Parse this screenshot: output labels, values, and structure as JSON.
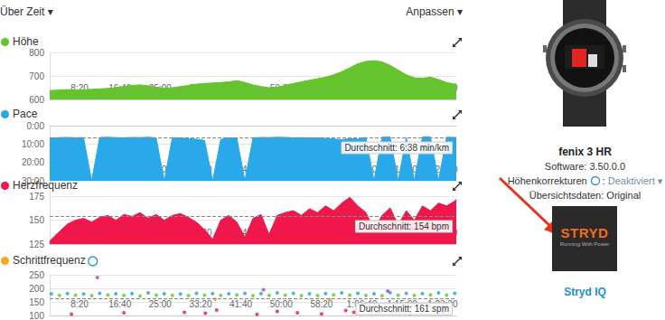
{
  "header": {
    "left": "Über Zeit ▾",
    "right": "Anpassen ▾"
  },
  "chart_data": [
    {
      "type": "area",
      "title": "Höhe",
      "color": "#65c32e",
      "x": [
        130,
        150,
        250,
        350,
        450,
        550,
        650,
        750,
        850,
        950,
        1050,
        1150,
        1250,
        1350,
        1450,
        1550,
        1650,
        1750,
        1850,
        1950,
        2050,
        2150,
        2250,
        2350,
        2450,
        2550,
        2650,
        2750,
        2850,
        2950,
        3050,
        3150,
        3250,
        3350,
        3450,
        3550,
        3650,
        3750,
        3850,
        3950,
        4050,
        4150,
        4250,
        4350,
        4450,
        4550,
        4650,
        4750,
        4850,
        4950,
        5050,
        5150,
        5170
      ],
      "values": [
        638,
        638,
        640,
        642,
        640,
        641,
        643,
        645,
        647,
        650,
        655,
        660,
        662,
        658,
        652,
        648,
        650,
        655,
        660,
        665,
        668,
        670,
        672,
        675,
        680,
        672,
        662,
        655,
        650,
        652,
        660,
        668,
        675,
        682,
        688,
        695,
        705,
        718,
        735,
        752,
        762,
        765,
        760,
        745,
        725,
        705,
        692,
        690,
        695,
        685,
        672,
        665,
        668
      ],
      "xlim": [
        130,
        5170
      ],
      "xticks": [
        {
          "value": 500,
          "label": "8:20"
        },
        {
          "value": 1000,
          "label": "16:40"
        },
        {
          "value": 1500,
          "label": "25:00"
        },
        {
          "value": 2000,
          "label": "33:20"
        },
        {
          "value": 2500,
          "label": "41:40"
        },
        {
          "value": 3000,
          "label": "50:00"
        },
        {
          "value": 3500,
          "label": "58:20"
        },
        {
          "value": 4000,
          "label": "1:06:40"
        },
        {
          "value": 4500,
          "label": "1:15:00"
        },
        {
          "value": 5000,
          "label": "1:23:20"
        }
      ],
      "ylim": [
        600,
        800
      ],
      "yticks": [
        600,
        700,
        800
      ],
      "grid": true
    },
    {
      "type": "area",
      "title": "Pace",
      "color": "#2aa9ea",
      "x": [
        130,
        150,
        250,
        350,
        450,
        550,
        650,
        750,
        850,
        950,
        1050,
        1150,
        1250,
        1350,
        1450,
        1550,
        1650,
        1750,
        1850,
        1950,
        2050,
        2150,
        2250,
        2350,
        2450,
        2550,
        2650,
        2750,
        2850,
        2950,
        3050,
        3150,
        3250,
        3350,
        3450,
        3550,
        3650,
        3750,
        3850,
        3950,
        4050,
        4150,
        4250,
        4350,
        4450,
        4550,
        4650,
        4750,
        4850,
        4950,
        5050,
        5150,
        5170
      ],
      "values": [
        7.2,
        6.8,
        6.5,
        6.4,
        6.6,
        6.5,
        30,
        6.4,
        6.3,
        6.5,
        6.6,
        6.4,
        6.5,
        6.3,
        6.6,
        30,
        6.5,
        6.7,
        7.0,
        7.4,
        8.0,
        30,
        7.5,
        6.6,
        6.8,
        30,
        6.6,
        6.4,
        6.5,
        6.3,
        6.4,
        6.6,
        6.5,
        6.7,
        6.6,
        6.9,
        7.2,
        7.6,
        7.0,
        7.3,
        6.4,
        30,
        6.3,
        6.2,
        30,
        6.4,
        30,
        6.2,
        6.1,
        30,
        6.3,
        6.4,
        6.4
      ],
      "xlim": [
        130,
        5170
      ],
      "xticks": [
        {
          "value": 500,
          "label": "8:20"
        },
        {
          "value": 1000,
          "label": "16:40"
        },
        {
          "value": 1500,
          "label": "25:00"
        },
        {
          "value": 2000,
          "label": "33:20"
        },
        {
          "value": 2500,
          "label": "41:40"
        },
        {
          "value": 3000,
          "label": "50:00"
        },
        {
          "value": 3500,
          "label": "58:20"
        },
        {
          "value": 4000,
          "label": "1:06:40"
        },
        {
          "value": 4500,
          "label": "1:15:00"
        },
        {
          "value": 5000,
          "label": "1:23:20"
        }
      ],
      "ylim": [
        30,
        0
      ],
      "yticks": [
        {
          "value": 0,
          "label": "0:00"
        },
        {
          "value": 10,
          "label": "10:00"
        },
        {
          "value": 20,
          "label": "20:00"
        },
        {
          "value": 30,
          "label": "30:00"
        }
      ],
      "grid": true,
      "annotations": [
        {
          "y": 6.633,
          "text": "Durchschnitt: 6:38 min/km"
        }
      ]
    },
    {
      "type": "area",
      "title": "Herzfrequenz",
      "color": "#f0174b",
      "x": [
        130,
        150,
        250,
        350,
        450,
        550,
        650,
        750,
        850,
        950,
        1050,
        1150,
        1250,
        1350,
        1450,
        1550,
        1650,
        1750,
        1850,
        1950,
        2050,
        2150,
        2250,
        2350,
        2450,
        2550,
        2650,
        2750,
        2850,
        2950,
        3050,
        3150,
        3250,
        3350,
        3450,
        3550,
        3650,
        3750,
        3850,
        3950,
        4050,
        4150,
        4250,
        4350,
        4450,
        4550,
        4650,
        4750,
        4850,
        4950,
        5050,
        5150,
        5170
      ],
      "values": [
        128,
        130,
        138,
        146,
        150,
        152,
        148,
        153,
        155,
        150,
        156,
        154,
        158,
        152,
        156,
        150,
        155,
        157,
        153,
        148,
        140,
        130,
        150,
        155,
        148,
        132,
        152,
        156,
        135,
        155,
        158,
        160,
        155,
        162,
        158,
        165,
        160,
        168,
        174,
        165,
        158,
        140,
        155,
        163,
        145,
        160,
        150,
        165,
        160,
        168,
        165,
        170,
        172
      ],
      "xlim": [
        130,
        5170
      ],
      "xticks": [
        {
          "value": 500,
          "label": "8:20"
        },
        {
          "value": 1000,
          "label": "16:40"
        },
        {
          "value": 1500,
          "label": "25:00"
        },
        {
          "value": 2000,
          "label": "33:20"
        },
        {
          "value": 2500,
          "label": "41:40"
        },
        {
          "value": 3000,
          "label": "50:00"
        },
        {
          "value": 3500,
          "label": "58:20"
        },
        {
          "value": 4000,
          "label": "1:06:40"
        },
        {
          "value": 4500,
          "label": "1:15:00"
        },
        {
          "value": 5000,
          "label": "1:23:20"
        }
      ],
      "ylim": [
        125,
        180
      ],
      "yticks": [
        125,
        150,
        175
      ],
      "grid": true,
      "annotations": [
        {
          "y": 154,
          "text": "Durchschnitt: 154 bpm"
        }
      ]
    },
    {
      "type": "scatter",
      "title": "Schrittfrequenz",
      "color": "#f5a623",
      "series": [
        {
          "color": "#1ba0e2",
          "x": [
            150,
            350,
            550,
            750,
            950,
            1150,
            1350,
            1550,
            1750,
            1950,
            2150,
            2350,
            2550,
            2750,
            2950,
            3150,
            3350,
            3550,
            3750,
            3950,
            4150,
            4350,
            4550,
            4750,
            4950,
            5150
          ],
          "values": [
            180,
            181,
            179,
            182,
            180,
            181,
            183,
            180,
            179,
            182,
            181,
            180,
            182,
            181,
            183,
            182,
            180,
            181,
            183,
            182,
            180,
            184,
            182,
            181,
            183,
            182
          ]
        },
        {
          "color": "#65c32e",
          "x": [
            250,
            450,
            650,
            850,
            1050,
            1250,
            1450,
            1650,
            1850,
            2050,
            2250,
            2450,
            2650,
            2850,
            3050,
            3250,
            3450,
            3650,
            3850,
            4050,
            4250,
            4450,
            4650,
            4850,
            5050
          ],
          "values": [
            174,
            175,
            173,
            176,
            174,
            172,
            175,
            174,
            173,
            175,
            174,
            176,
            173,
            174,
            175,
            173,
            174,
            176,
            175,
            174,
            173,
            175,
            174,
            176,
            175
          ]
        },
        {
          "color": "#e8173f",
          "x": [
            400,
            1050,
            1800,
            2060,
            2200,
            2700,
            2950,
            3200,
            3500,
            3800,
            3900,
            4200,
            4600,
            5000
          ],
          "values": [
            105,
            110,
            112,
            108,
            120,
            104,
            115,
            110,
            106,
            118,
            112,
            109,
            107,
            111
          ]
        },
        {
          "color": "#a03fd6",
          "x": [
            720,
            2780,
            4320
          ],
          "values": [
            240,
            195,
            190
          ]
        },
        {
          "color": "#f5a623",
          "x": [
            2180,
            3600
          ],
          "values": [
            160,
            158
          ]
        }
      ],
      "xlim": [
        130,
        5170
      ],
      "xticks": [
        {
          "value": 500,
          "label": "8:20"
        },
        {
          "value": 1000,
          "label": "16:40"
        },
        {
          "value": 1500,
          "label": "25:00"
        },
        {
          "value": 2000,
          "label": "33:20"
        },
        {
          "value": 2500,
          "label": "41:40"
        },
        {
          "value": 3000,
          "label": "50:00"
        },
        {
          "value": 3500,
          "label": "58:20"
        },
        {
          "value": 4000,
          "label": "1:06:40"
        },
        {
          "value": 4500,
          "label": "1:15:00"
        },
        {
          "value": 5000,
          "label": "1:23:20"
        }
      ],
      "ylim": [
        100,
        250
      ],
      "yticks": [
        100,
        150,
        200,
        250
      ],
      "grid": true,
      "annotations": [
        {
          "y": 161,
          "text": "Durchschnitt: 161 spm"
        }
      ]
    }
  ],
  "device": {
    "name": "fenix 3 HR",
    "software": "Software: 3.50.0.0",
    "corrections": {
      "label": "Höhenkorrekturen",
      "separator": ":",
      "value": "Deaktiviert ▾"
    },
    "summary": "Übersichtsdaten: Original"
  },
  "app": {
    "logo": "STRYD",
    "tagline": "Running With Power",
    "name": "Stryd IQ"
  }
}
